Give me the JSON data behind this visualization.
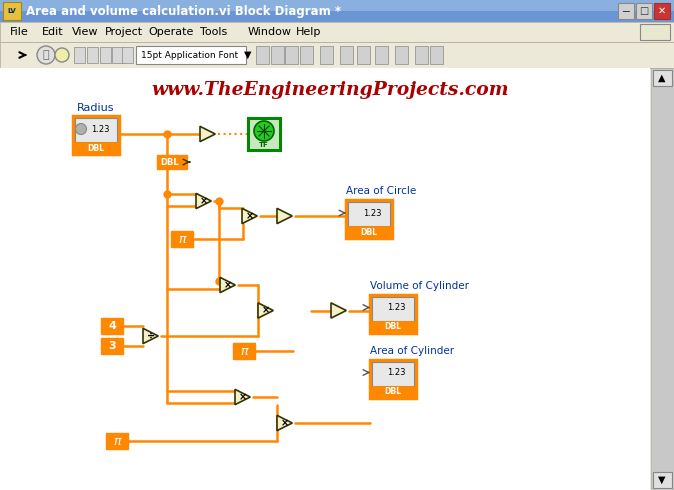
{
  "title_text": "Area and volume calculation.vi Block Diagram *",
  "website_text": "www.TheEngineeringProjects.com",
  "website_color": "#aa0000",
  "bg_color": "#f0ede8",
  "toolbar_color": "#ece9d8",
  "orange": "#ff8800",
  "wire_color": "#ff8800",
  "diagram_bg": "#ffffff",
  "menu_items": [
    "File",
    "Edit",
    "View",
    "Project",
    "Operate",
    "Tools",
    "Window",
    "Help"
  ],
  "title_bar_color": "#4a6fa5",
  "scrollbar_color": "#c8c8c8"
}
